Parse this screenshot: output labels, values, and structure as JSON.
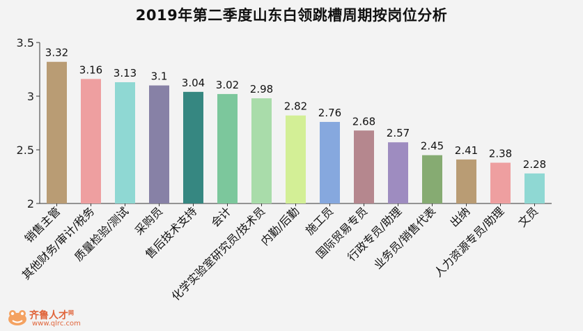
{
  "title": "2019年第二季度山东白领跳槽周期按岗位分析",
  "watermark": {
    "name": "齐鲁人才",
    "url": "www.qlrc.com",
    "net": "网"
  },
  "chart_data": {
    "type": "bar",
    "title": "2019年第二季度山东白领跳槽周期按岗位分析",
    "xlabel": "",
    "ylabel": "",
    "ylim": [
      2,
      3.5
    ],
    "yticks": [
      "2",
      "2.5",
      "3",
      "3.5"
    ],
    "grid": false,
    "legend": "none",
    "categories": [
      "销售主管",
      "其他财务/审计/税务",
      "质量检验/测试",
      "采购员",
      "售后技术支持",
      "会计",
      "化学实验室研究员/技术员",
      "内勤/后勤",
      "施工员",
      "国际贸易专员",
      "行政专员/助理",
      "业务员/销售代表",
      "出纳",
      "人力资源专员/助理",
      "文员"
    ],
    "values": [
      3.32,
      3.16,
      3.13,
      3.1,
      3.04,
      3.02,
      2.98,
      2.82,
      2.76,
      2.68,
      2.57,
      2.45,
      2.41,
      2.38,
      2.28
    ],
    "value_labels": [
      "3.32",
      "3.16",
      "3.13",
      "3.1",
      "3.04",
      "3.02",
      "2.98",
      "2.82",
      "2.76",
      "2.68",
      "2.57",
      "2.45",
      "2.41",
      "2.38",
      "2.28"
    ],
    "colors": [
      "#b99c74",
      "#ee9fa0",
      "#8fd8d3",
      "#8781a6",
      "#368781",
      "#7cc79c",
      "#a9dcaa",
      "#d3ef96",
      "#86a8de",
      "#b5878e",
      "#9e8cc0",
      "#86ab72",
      "#b99c74",
      "#ee9fa0",
      "#8fd8d3"
    ]
  }
}
